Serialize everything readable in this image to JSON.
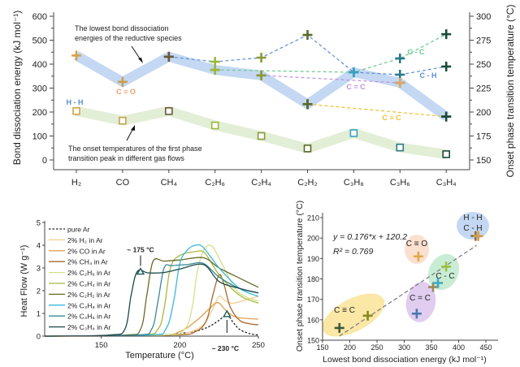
{
  "chart_data": [
    {
      "type": "line",
      "panel": "top",
      "categories": [
        "H₂",
        "CO",
        "CH₄",
        "C₂H₆",
        "C₂H₄",
        "C₂H₂",
        "C₃H₈",
        "C₃H₆",
        "C₃H₄"
      ],
      "ylabel": "Bond dissociation energy (kJ mol⁻¹)",
      "ylim": [
        0,
        600
      ],
      "yticks": [
        0,
        100,
        200,
        300,
        400,
        500,
        600
      ],
      "y2label": "Onset phase transition temperature (°C)",
      "y2lim": [
        150,
        300
      ],
      "y2ticks": [
        150,
        175,
        200,
        225,
        250,
        275,
        300
      ],
      "lowest_bond_energy": {
        "values": [
          436,
          326,
          431,
          376,
          353,
          233,
          366,
          322,
          181
        ],
        "color": "#c4d8f3"
      },
      "onset_temperature": {
        "values": [
          201,
          191,
          201,
          186,
          175,
          162,
          178,
          163,
          156
        ],
        "color": "#e3eed6"
      },
      "bond_series": [
        {
          "name": "C - H",
          "color": "#5b8fd6",
          "points": [
            [
              2,
              431
            ],
            [
              3,
              410
            ],
            [
              4,
              427
            ],
            [
              5,
              522
            ],
            [
              6,
              366
            ],
            [
              7,
              356
            ],
            [
              8,
              390
            ]
          ]
        },
        {
          "name": "C - C",
          "color": "#6cc890",
          "points": [
            [
              3,
              376
            ],
            [
              6,
              366
            ],
            [
              7,
              424
            ],
            [
              8,
              525
            ]
          ]
        },
        {
          "name": "C = C",
          "color": "#c090e0",
          "points": [
            [
              4,
              353
            ],
            [
              7,
              322
            ]
          ]
        },
        {
          "name": "C ≡ C",
          "color": "#f0c030",
          "points": [
            [
              5,
              233
            ],
            [
              8,
              181
            ]
          ]
        }
      ],
      "bond_labels": [
        {
          "text": "H - H",
          "color": "#5b8fd6"
        },
        {
          "text": "C ≡ O",
          "color": "#f0a070"
        },
        {
          "text": "C - C",
          "color": "#6cc890"
        },
        {
          "text": "C - H",
          "color": "#5b8fd6"
        },
        {
          "text": "C = C",
          "color": "#c090e0"
        },
        {
          "text": "C ≡ C",
          "color": "#f0c030"
        }
      ],
      "species_colors": [
        "#d4a24a",
        "#c8a050",
        "#6a5a3a",
        "#9ab83a",
        "#8a9a38",
        "#5a6a2a",
        "#3aa0c0",
        "#2a7a8a",
        "#1a4a3a"
      ],
      "annotations": [
        {
          "lines": [
            "The lowest bond dissociation",
            "energies of the reductive species"
          ]
        },
        {
          "lines": [
            "The onset temperatures of the first phase",
            "transition peak in different gas flows"
          ]
        }
      ]
    },
    {
      "type": "line",
      "panel": "bottom-left",
      "xlabel": "Temperature (°C)",
      "ylabel": "Heat Flow (W g⁻¹)",
      "xlim": [
        114,
        250
      ],
      "ylim": [
        0,
        5
      ],
      "xticks": [
        150,
        200,
        250
      ],
      "yticks": [
        0,
        1,
        2,
        3,
        4,
        5
      ],
      "legend": "top-left",
      "series": [
        {
          "name": "pure Ar",
          "color": "#222222",
          "dashed": true,
          "points": [
            [
              114,
              0
            ],
            [
              180,
              0.03
            ],
            [
              200,
              0.12
            ],
            [
              210,
              0.22
            ],
            [
              218,
              0.4
            ],
            [
              224,
              0.65
            ],
            [
              230,
              0.92
            ],
            [
              234,
              0.6
            ],
            [
              238,
              0.3
            ],
            [
              244,
              0.12
            ],
            [
              250,
              0.05
            ]
          ]
        },
        {
          "name": "2% H₂ in Ar",
          "color": "#f3cf90",
          "points": [
            [
              114,
              0
            ],
            [
              190,
              0.03
            ],
            [
              205,
              0.15
            ],
            [
              215,
              0.5
            ],
            [
              221,
              1.2
            ],
            [
              225,
              1.75
            ],
            [
              229,
              1.55
            ],
            [
              234,
              1.45
            ],
            [
              242,
              1.6
            ],
            [
              250,
              1.75
            ]
          ]
        },
        {
          "name": "2% CO in Ar",
          "color": "#e0a050",
          "points": [
            [
              114,
              0
            ],
            [
              185,
              0.03
            ],
            [
              200,
              0.2
            ],
            [
              210,
              0.65
            ],
            [
              218,
              1.15
            ],
            [
              224,
              1.48
            ],
            [
              229,
              1.15
            ],
            [
              235,
              0.85
            ],
            [
              242,
              0.78
            ],
            [
              250,
              0.75
            ]
          ]
        },
        {
          "name": "2% CH₄ in Ar",
          "color": "#a8692a",
          "points": [
            [
              114,
              0
            ],
            [
              195,
              0.05
            ],
            [
              210,
              0.2
            ],
            [
              217,
              0.7
            ],
            [
              221,
              1.8
            ],
            [
              225,
              2.7
            ],
            [
              228,
              2.3
            ],
            [
              232,
              1.3
            ],
            [
              238,
              0.7
            ],
            [
              244,
              0.55
            ],
            [
              250,
              0.5
            ]
          ]
        },
        {
          "name": "2% C₂H₆ in Ar",
          "color": "#d6e08a",
          "points": [
            [
              114,
              0
            ],
            [
              190,
              0.05
            ],
            [
              203,
              0.3
            ],
            [
              208,
              1.3
            ],
            [
              211,
              2.8
            ],
            [
              215,
              3.75
            ],
            [
              220,
              3.98
            ],
            [
              226,
              3.3
            ],
            [
              235,
              2.1
            ],
            [
              243,
              1.7
            ],
            [
              250,
              1.55
            ]
          ]
        },
        {
          "name": "2% C₂H₄ in Ar",
          "color": "#a8b840",
          "points": [
            [
              114,
              0
            ],
            [
              175,
              0.05
            ],
            [
              186,
              0.3
            ],
            [
              190,
              1.2
            ],
            [
              194,
              3.0
            ],
            [
              200,
              3.55
            ],
            [
              210,
              3.72
            ],
            [
              216,
              3.65
            ],
            [
              225,
              2.7
            ],
            [
              238,
              1.8
            ],
            [
              250,
              1.45
            ]
          ]
        },
        {
          "name": "2% C₂H₂ in Ar",
          "color": "#6a6a28",
          "points": [
            [
              114,
              0
            ],
            [
              165,
              0.05
            ],
            [
              175,
              0.3
            ],
            [
              179,
              1.8
            ],
            [
              183,
              3.3
            ],
            [
              190,
              3.3
            ],
            [
              200,
              3.35
            ],
            [
              215,
              3.45
            ],
            [
              225,
              3.0
            ],
            [
              238,
              2.55
            ],
            [
              250,
              2.15
            ]
          ]
        },
        {
          "name": "2% C₃H₈ in Ar",
          "color": "#3ab8d8",
          "points": [
            [
              114,
              0
            ],
            [
              180,
              0.05
            ],
            [
              191,
              0.3
            ],
            [
              196,
              1.5
            ],
            [
              200,
              3.2
            ],
            [
              205,
              3.8
            ],
            [
              210,
              4.0
            ],
            [
              215,
              3.9
            ],
            [
              225,
              3.0
            ],
            [
              238,
              2.1
            ],
            [
              250,
              1.75
            ]
          ]
        },
        {
          "name": "2% C₃H₆ in Ar",
          "color": "#3a8a98",
          "points": [
            [
              114,
              0
            ],
            [
              172,
              0.05
            ],
            [
              182,
              0.3
            ],
            [
              186,
              1.5
            ],
            [
              190,
              3.0
            ],
            [
              195,
              3.1
            ],
            [
              205,
              3.15
            ],
            [
              215,
              3.2
            ],
            [
              225,
              2.6
            ],
            [
              238,
              2.1
            ],
            [
              250,
              1.9
            ]
          ]
        },
        {
          "name": "2% C₃H₄ in Ar",
          "color": "#1a4a48",
          "points": [
            [
              114,
              0
            ],
            [
              155,
              0.05
            ],
            [
              165,
              0.3
            ],
            [
              169,
              1.8
            ],
            [
              173,
              2.85
            ],
            [
              180,
              2.78
            ],
            [
              190,
              2.8
            ],
            [
              200,
              2.95
            ],
            [
              215,
              3.15
            ],
            [
              225,
              2.4
            ],
            [
              238,
              2.1
            ],
            [
              250,
              1.9
            ]
          ]
        }
      ],
      "annotations": [
        {
          "text": "~ 175 °C",
          "x": 175,
          "y": 2.8
        },
        {
          "text": "~ 230 °C",
          "x": 230,
          "y": 0.93
        }
      ]
    },
    {
      "type": "scatter",
      "panel": "bottom-right",
      "xlabel": "Lowest bond dissociation energy (kJ mol⁻¹)",
      "ylabel": "Onset phase transition temperature (°C)",
      "xlim": [
        150,
        450
      ],
      "ylim": [
        150,
        210
      ],
      "xticks": [
        150,
        200,
        250,
        300,
        350,
        400,
        450
      ],
      "yticks": [
        150,
        160,
        170,
        180,
        190,
        200,
        210
      ],
      "points": [
        {
          "x": 181,
          "y": 156,
          "color": "#3a5a3a"
        },
        {
          "x": 233,
          "y": 162,
          "color": "#8a8a20"
        },
        {
          "x": 323,
          "y": 163,
          "color": "#4a7ab0"
        },
        {
          "x": 326,
          "y": 191,
          "color": "#e0a848"
        },
        {
          "x": 353,
          "y": 176,
          "color": "#9a8a58"
        },
        {
          "x": 362,
          "y": 178,
          "color": "#40a8c8"
        },
        {
          "x": 377,
          "y": 186,
          "color": "#9ac040"
        },
        {
          "x": 431,
          "y": 201,
          "color": "#8a7048"
        },
        {
          "x": 436,
          "y": 201,
          "color": "#d0a050"
        }
      ],
      "fit": {
        "slope": 0.176,
        "intercept": 120.2,
        "equation": "y = 0.176*x + 120.2",
        "r2": "R² = 0.769"
      },
      "groups": [
        {
          "label": [
            "H - H",
            "C - H"
          ],
          "color": "#c4d8f3"
        },
        {
          "label": [
            "C ≡ O"
          ],
          "color": "#fbe0d0"
        },
        {
          "label": [
            "C - C"
          ],
          "color": "#c8ecd4"
        },
        {
          "label": [
            "C = C"
          ],
          "color": "#e0cdf0"
        },
        {
          "label": [
            "C ≡ C"
          ],
          "color": "#fbe7a6"
        }
      ]
    }
  ]
}
